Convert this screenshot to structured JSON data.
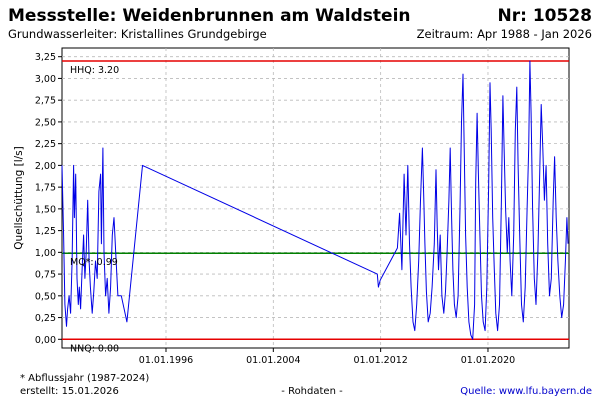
{
  "header": {
    "title": "Messstelle: Weidenbrunnen am Waldstein",
    "number": "Nr: 10528",
    "subtitle": "Grundwasserleiter: Kristallines Grundgebirge",
    "period": "Zeitraum: Apr 1988 - Jan 2026"
  },
  "footer": {
    "note": "* Abflussjahr (1987-2024)",
    "created": "erstellt:  15.01.2026",
    "rawdata": "- Rohdaten -",
    "source": "Quelle: www.lfu.bayern.de"
  },
  "colors": {
    "series": "#0000e6",
    "reference_extreme": "#e60000",
    "reference_mean": "#008000",
    "grid": "#bbbbbb"
  },
  "chart_data": {
    "type": "line",
    "title": "Messstelle: Weidenbrunnen am Waldstein",
    "ylabel": "Quellschüttung [l/s]",
    "xlabel": "",
    "x_is_date": true,
    "xlim": [
      "1988-04-01",
      "2026-01-15"
    ],
    "ylim": [
      -0.1,
      3.35
    ],
    "yticks": [
      0.0,
      0.25,
      0.5,
      0.75,
      1.0,
      1.25,
      1.5,
      1.75,
      2.0,
      2.25,
      2.5,
      2.75,
      3.0,
      3.25
    ],
    "ytick_labels": [
      "0,00",
      "0,25",
      "0,50",
      "0,75",
      "1,00",
      "1,25",
      "1,50",
      "1,75",
      "2,00",
      "2,25",
      "2,50",
      "2,75",
      "3,00",
      "3,25"
    ],
    "xticks": [
      "1996-01-01",
      "2004-01-01",
      "2012-01-01",
      "2020-01-01"
    ],
    "xtick_labels": [
      "01.01.1996",
      "01.01.2004",
      "01.01.2012",
      "01.01.2020"
    ],
    "grid": true,
    "reference_lines": [
      {
        "label": "HHQ: 3.20",
        "value": 3.2,
        "color": "#e60000"
      },
      {
        "label": "MQ*: 0.99",
        "value": 0.99,
        "color": "#008000"
      },
      {
        "label": "NNQ: 0.00",
        "value": 0.0,
        "color": "#e60000"
      }
    ],
    "series": [
      {
        "color": "#0000e6",
        "points": [
          [
            "1988-04-01",
            2.0
          ],
          [
            "1988-05-15",
            1.2
          ],
          [
            "1988-06-20",
            0.4
          ],
          [
            "1988-08-01",
            0.15
          ],
          [
            "1988-09-01",
            0.35
          ],
          [
            "1988-10-10",
            0.5
          ],
          [
            "1988-11-20",
            0.3
          ],
          [
            "1989-01-01",
            0.9
          ],
          [
            "1989-02-10",
            2.0
          ],
          [
            "1989-03-05",
            1.4
          ],
          [
            "1989-04-10",
            1.9
          ],
          [
            "1989-05-15",
            0.7
          ],
          [
            "1989-06-20",
            0.4
          ],
          [
            "1989-07-15",
            0.6
          ],
          [
            "1989-08-20",
            0.35
          ],
          [
            "1989-10-01",
            0.8
          ],
          [
            "1989-11-10",
            1.2
          ],
          [
            "1989-12-15",
            0.7
          ],
          [
            "1990-01-20",
            1.0
          ],
          [
            "1990-03-01",
            1.6
          ],
          [
            "1990-04-10",
            0.9
          ],
          [
            "1990-05-15",
            0.6
          ],
          [
            "1990-07-01",
            0.3
          ],
          [
            "1990-08-15",
            0.55
          ],
          [
            "1990-10-01",
            0.9
          ],
          [
            "1990-11-15",
            0.7
          ],
          [
            "1991-01-01",
            1.7
          ],
          [
            "1991-02-15",
            1.9
          ],
          [
            "1991-03-10",
            1.1
          ],
          [
            "1991-04-20",
            2.2
          ],
          [
            "1991-05-20",
            1.0
          ],
          [
            "1991-07-01",
            0.5
          ],
          [
            "1991-08-15",
            0.7
          ],
          [
            "1991-10-01",
            0.3
          ],
          [
            "1991-11-15",
            0.6
          ],
          [
            "1992-01-01",
            1.2
          ],
          [
            "1992-02-15",
            1.4
          ],
          [
            "1992-04-01",
            1.0
          ],
          [
            "1992-06-01",
            0.5
          ],
          [
            "1992-09-01",
            0.5
          ],
          [
            "1993-02-01",
            0.2
          ],
          [
            "1994-04-01",
            2.0
          ],
          [
            "2011-10-01",
            0.75
          ],
          [
            "2011-11-01",
            0.6
          ],
          [
            "2011-12-20",
            0.68
          ],
          [
            "2013-04-01",
            1.05
          ],
          [
            "2013-06-01",
            1.45
          ],
          [
            "2013-08-01",
            0.8
          ],
          [
            "2013-10-01",
            1.9
          ],
          [
            "2013-11-20",
            1.2
          ],
          [
            "2014-01-10",
            2.0
          ],
          [
            "2014-02-25",
            1.1
          ],
          [
            "2014-04-10",
            0.6
          ],
          [
            "2014-06-01",
            0.2
          ],
          [
            "2014-07-20",
            0.1
          ],
          [
            "2014-09-10",
            0.4
          ],
          [
            "2014-11-01",
            0.9
          ],
          [
            "2014-12-20",
            1.6
          ],
          [
            "2015-02-10",
            2.2
          ],
          [
            "2015-03-15",
            1.7
          ],
          [
            "2015-04-20",
            1.1
          ],
          [
            "2015-06-01",
            0.55
          ],
          [
            "2015-07-20",
            0.2
          ],
          [
            "2015-09-10",
            0.3
          ],
          [
            "2015-11-01",
            0.6
          ],
          [
            "2016-01-01",
            1.1
          ],
          [
            "2016-02-15",
            1.95
          ],
          [
            "2016-03-20",
            1.3
          ],
          [
            "2016-04-25",
            0.8
          ],
          [
            "2016-06-10",
            1.2
          ],
          [
            "2016-07-25",
            0.5
          ],
          [
            "2016-09-15",
            0.3
          ],
          [
            "2016-11-01",
            0.55
          ],
          [
            "2016-12-15",
            1.0
          ],
          [
            "2017-02-01",
            1.6
          ],
          [
            "2017-03-10",
            2.2
          ],
          [
            "2017-04-15",
            1.4
          ],
          [
            "2017-05-20",
            0.8
          ],
          [
            "2017-07-01",
            0.4
          ],
          [
            "2017-08-20",
            0.25
          ],
          [
            "2017-10-10",
            0.5
          ],
          [
            "2017-12-01",
            1.5
          ],
          [
            "2018-01-10",
            2.5
          ],
          [
            "2018-02-20",
            3.05
          ],
          [
            "2018-03-25",
            2.2
          ],
          [
            "2018-05-01",
            1.2
          ],
          [
            "2018-06-15",
            0.6
          ],
          [
            "2018-08-01",
            0.2
          ],
          [
            "2018-09-20",
            0.05
          ],
          [
            "2018-11-10",
            0.0
          ],
          [
            "2019-01-01",
            0.4
          ],
          [
            "2019-02-01",
            1.8
          ],
          [
            "2019-03-10",
            2.6
          ],
          [
            "2019-04-15",
            1.9
          ],
          [
            "2019-05-25",
            1.2
          ],
          [
            "2019-07-10",
            0.5
          ],
          [
            "2019-08-25",
            0.2
          ],
          [
            "2019-10-15",
            0.1
          ],
          [
            "2019-12-01",
            0.6
          ],
          [
            "2020-01-20",
            1.8
          ],
          [
            "2020-02-25",
            2.95
          ],
          [
            "2020-03-30",
            2.4
          ],
          [
            "2020-05-10",
            1.4
          ],
          [
            "2020-06-20",
            0.8
          ],
          [
            "2020-08-01",
            0.3
          ],
          [
            "2020-09-20",
            0.1
          ],
          [
            "2020-11-10",
            0.4
          ],
          [
            "2021-01-01",
            1.6
          ],
          [
            "2021-02-10",
            2.8
          ],
          [
            "2021-03-15",
            2.2
          ],
          [
            "2021-04-25",
            1.5
          ],
          [
            "2021-06-10",
            1.0
          ],
          [
            "2021-07-20",
            1.4
          ],
          [
            "2021-08-25",
            0.9
          ],
          [
            "2021-10-10",
            0.5
          ],
          [
            "2021-12-01",
            1.2
          ],
          [
            "2022-01-15",
            2.4
          ],
          [
            "2022-02-25",
            2.9
          ],
          [
            "2022-04-01",
            2.0
          ],
          [
            "2022-05-15",
            1.2
          ],
          [
            "2022-07-01",
            0.4
          ],
          [
            "2022-08-20",
            0.2
          ],
          [
            "2022-10-10",
            0.6
          ],
          [
            "2022-12-01",
            1.5
          ],
          [
            "2023-01-15",
            2.2
          ],
          [
            "2023-02-15",
            3.2
          ],
          [
            "2023-03-20",
            2.6
          ],
          [
            "2023-05-01",
            1.5
          ],
          [
            "2023-06-15",
            0.7
          ],
          [
            "2023-08-01",
            0.4
          ],
          [
            "2023-09-20",
            1.0
          ],
          [
            "2023-11-10",
            1.9
          ],
          [
            "2023-12-20",
            2.7
          ],
          [
            "2024-02-01",
            2.2
          ],
          [
            "2024-03-15",
            1.6
          ],
          [
            "2024-05-01",
            2.0
          ],
          [
            "2024-06-15",
            1.1
          ],
          [
            "2024-08-01",
            0.5
          ],
          [
            "2024-09-20",
            0.7
          ],
          [
            "2024-11-10",
            1.6
          ],
          [
            "2024-12-20",
            2.1
          ],
          [
            "2025-02-01",
            1.4
          ],
          [
            "2025-03-20",
            0.9
          ],
          [
            "2025-05-10",
            0.5
          ],
          [
            "2025-07-01",
            0.25
          ],
          [
            "2025-08-20",
            0.4
          ],
          [
            "2025-10-10",
            0.9
          ],
          [
            "2025-11-20",
            1.4
          ],
          [
            "2025-12-20",
            1.1
          ]
        ]
      }
    ]
  }
}
